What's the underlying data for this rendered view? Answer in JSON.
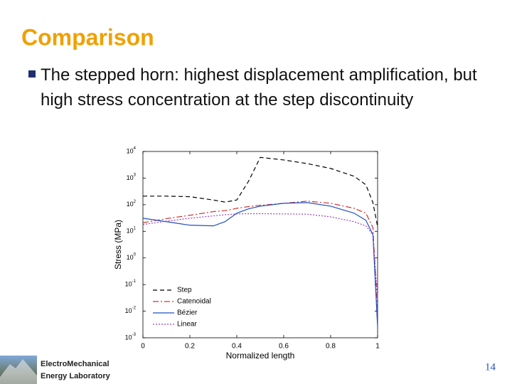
{
  "slide": {
    "title": "Comparison",
    "bullet": "The stepped horn: highest displacement amplification, but high stress concentration at the step discontinuity",
    "logo": [
      "ElectroMechanical",
      "Energy Laboratory"
    ],
    "page_number": "14"
  },
  "chart_data": {
    "type": "line",
    "log_y": true,
    "x_label": "Normalized length",
    "y_label": "Stress (MPa)",
    "legend": "bottom-left",
    "x": [
      0,
      0.1,
      0.2,
      0.3,
      0.35,
      0.4,
      0.45,
      0.5,
      0.6,
      0.7,
      0.8,
      0.9,
      0.95,
      0.98,
      1
    ],
    "series": [
      {
        "name": "Step",
        "color": "#000000",
        "dash": "6,4",
        "values": [
          210,
          210,
          200,
          150,
          125,
          150,
          760,
          6000,
          4800,
          3500,
          2300,
          1170,
          560,
          120,
          15
        ]
      },
      {
        "name": "Catenoidal",
        "color": "#d03030",
        "dash": "8,3,2,3",
        "values": [
          21,
          30,
          40,
          55,
          60,
          73,
          85,
          95,
          113,
          136,
          113,
          73,
          48,
          14,
          0.007
        ]
      },
      {
        "name": "Bézier",
        "color": "#2050c0",
        "dash": "none",
        "values": [
          31,
          23,
          17,
          16,
          23,
          48,
          70,
          88,
          113,
          120,
          88,
          48,
          26,
          7.5,
          0.0025
        ]
      },
      {
        "name": "Linear",
        "color": "#a040c0",
        "dash": "2,2",
        "values": [
          18,
          24,
          31,
          38,
          42,
          45,
          46,
          46,
          45,
          44,
          35,
          23,
          16,
          7.5,
          0.03
        ]
      }
    ],
    "xlim": [
      0,
      1
    ],
    "xticks": [
      0,
      0.2,
      0.4,
      0.6,
      0.8,
      1
    ],
    "ylim": [
      0.001,
      10000
    ],
    "yticks": [
      {
        "value": 0.001,
        "label": "10",
        "exponent": "-3"
      },
      {
        "value": 0.01,
        "label": "10",
        "exponent": "-2"
      },
      {
        "value": 0.1,
        "label": "10",
        "exponent": "-1"
      },
      {
        "value": 1,
        "label": "10",
        "exponent": "0"
      },
      {
        "value": 10,
        "label": "10",
        "exponent": "1"
      },
      {
        "value": 100,
        "label": "10",
        "exponent": "2"
      },
      {
        "value": 1000,
        "label": "10",
        "exponent": "3"
      },
      {
        "value": 10000,
        "label": "10",
        "exponent": "4"
      }
    ]
  }
}
